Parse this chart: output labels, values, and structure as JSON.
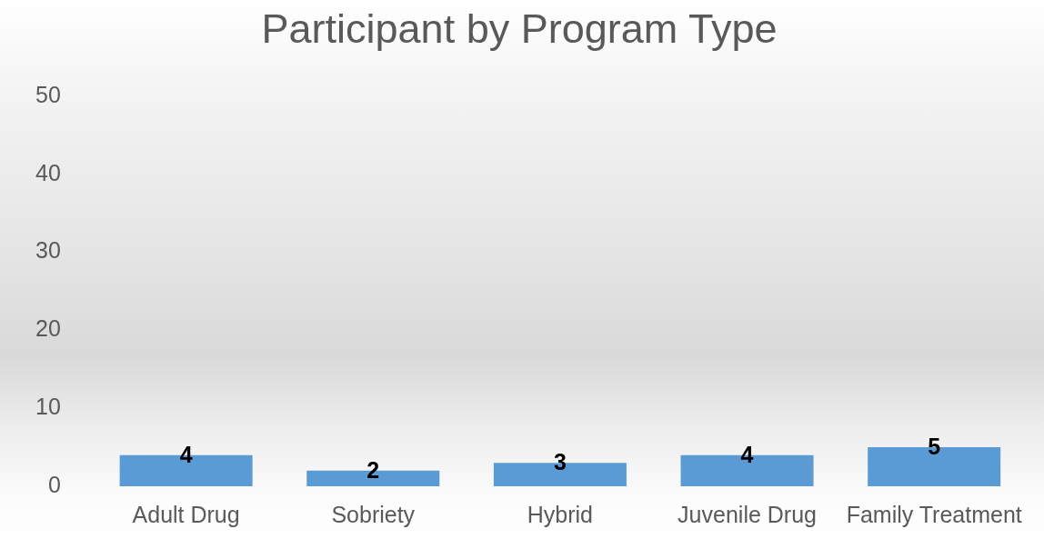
{
  "chart_data": {
    "type": "bar",
    "title": "Participant by Program Type",
    "categories": [
      "Adult Drug",
      "Sobriety",
      "Hybrid",
      "Juvenile Drug",
      "Family Treatment"
    ],
    "values": [
      4,
      2,
      3,
      4,
      5
    ],
    "color": "#5b9bd5",
    "ylim": [
      0,
      50
    ],
    "yticks": [
      0,
      10,
      20,
      30,
      40,
      50
    ],
    "data_labels": true
  }
}
